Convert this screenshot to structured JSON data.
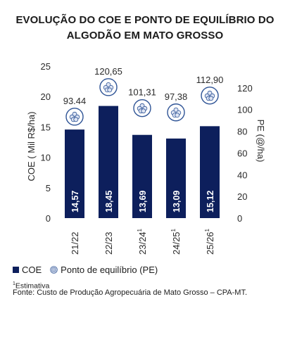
{
  "chart_data": {
    "type": "bar",
    "title": "EVOLUÇÃO DO COE E PONTO DE EQUILÍBRIO DO ALGODÃO EM MATO GROSSO",
    "title_lines": [
      "EVOLUÇÃO DO COE E PONTO DE EQUILÍBRIO DO",
      "ALGODÃO EM MATO GROSSO"
    ],
    "categories": [
      {
        "label": "21/22",
        "sup": ""
      },
      {
        "label": "22/23",
        "sup": ""
      },
      {
        "label": "23/24",
        "sup": "1"
      },
      {
        "label": "24/25",
        "sup": "1"
      },
      {
        "label": "25/26",
        "sup": "1"
      }
    ],
    "series": [
      {
        "name": "COE",
        "axis": "left",
        "values": [
          14.57,
          18.45,
          13.69,
          13.09,
          15.12
        ],
        "value_labels": [
          "14,57",
          "18,45",
          "13,69",
          "13,09",
          "15,12"
        ]
      },
      {
        "name": "Ponto de equilíbrio (PE)",
        "axis": "right",
        "values": [
          93.44,
          120.65,
          101.31,
          97.38,
          112.9
        ],
        "value_labels": [
          "93.44",
          "120,65",
          "101,31",
          "97,38",
          "112,90"
        ]
      }
    ],
    "ylabel": "COE ( Mil R$/ha)",
    "y2label": "PE (@/ha)",
    "ylim": [
      0,
      25
    ],
    "y2lim": [
      0,
      140
    ],
    "yticks": [
      0,
      5,
      10,
      15,
      20,
      25
    ],
    "y2ticks": [
      0,
      20,
      40,
      60,
      80,
      100,
      120
    ],
    "grid": false,
    "legend_position": "bottom-left",
    "colors": {
      "bar": "#0d1f5c",
      "bar_text": "#ffffff",
      "pe_marker": "#2f5496",
      "axis_text": "#2a2a2a"
    }
  },
  "legend": {
    "coe": "COE",
    "pe": "Ponto de equilíbrio (PE)"
  },
  "footnote": {
    "sup": "1",
    "text": "Estimativa"
  },
  "source": "Fonte: Custo de Produção Agropecuária de Mato Grosso – CPA-MT."
}
